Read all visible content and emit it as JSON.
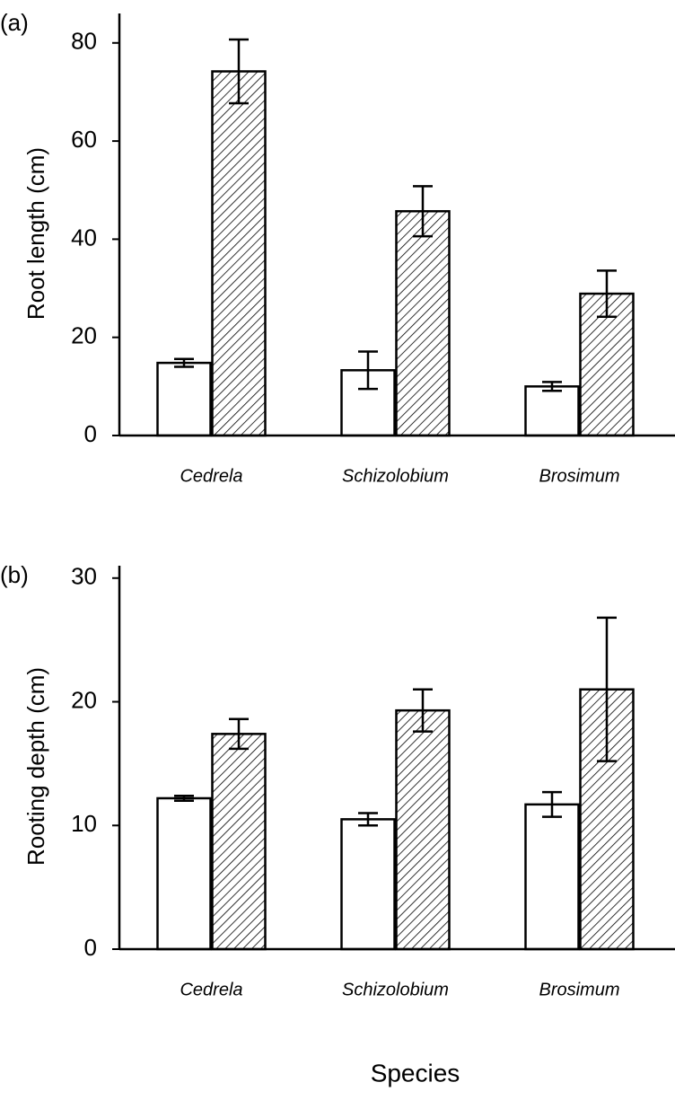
{
  "chart_data": [
    {
      "type": "bar",
      "panel_label": "(a)",
      "ylabel": "Root length (cm)",
      "categories": [
        "Cedrela",
        "Schizolobium",
        "Brosimum"
      ],
      "series": [
        {
          "color": "#ffffff",
          "hatch": false,
          "values": [
            14.8,
            13.3,
            10.0
          ],
          "errors": [
            0.8,
            3.8,
            0.9
          ]
        },
        {
          "color": "#ffffff",
          "hatch": true,
          "values": [
            74.2,
            45.7,
            28.9
          ],
          "errors": [
            6.5,
            5.1,
            4.7
          ]
        }
      ],
      "ylim": [
        0,
        86
      ],
      "yticks": [
        0,
        20,
        40,
        60,
        80
      ]
    },
    {
      "type": "bar",
      "panel_label": "(b)",
      "ylabel": "Rooting depth (cm)",
      "xlabel": "Species",
      "categories": [
        "Cedrela",
        "Schizolobium",
        "Brosimum"
      ],
      "series": [
        {
          "color": "#ffffff",
          "hatch": false,
          "values": [
            12.2,
            10.5,
            11.7
          ],
          "errors": [
            0.2,
            0.5,
            1.0
          ]
        },
        {
          "color": "#ffffff",
          "hatch": true,
          "values": [
            17.4,
            19.3,
            21.0
          ],
          "errors": [
            1.2,
            1.7,
            5.8
          ]
        }
      ],
      "ylim": [
        0,
        31
      ],
      "yticks": [
        0,
        10,
        20,
        30
      ]
    }
  ]
}
